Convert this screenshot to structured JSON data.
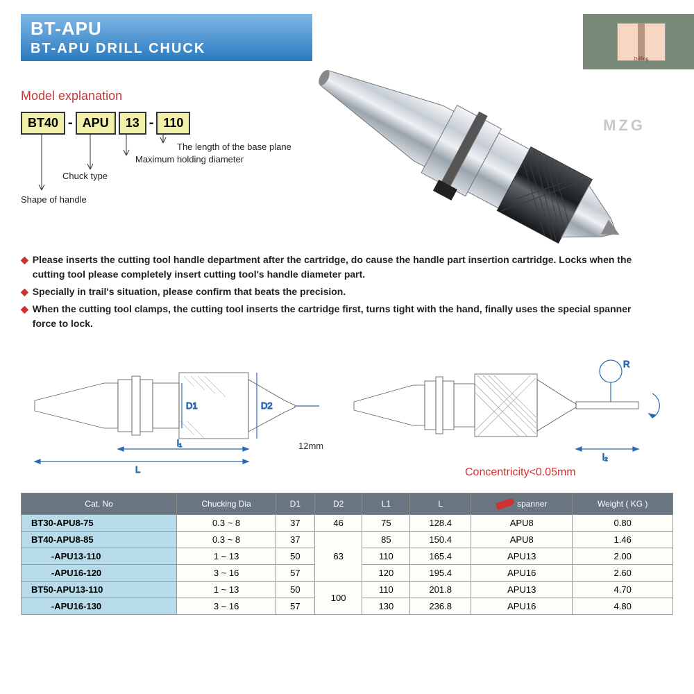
{
  "header": {
    "line1": "BT-APU",
    "line2": "BT-APU  DRILL CHUCK"
  },
  "corner": {
    "label": "Drilling"
  },
  "watermark": "MZG",
  "model": {
    "title": "Model explanation",
    "parts": [
      "BT40",
      "APU",
      "13",
      "110"
    ],
    "labels": {
      "shape": "Shape of handle",
      "chuck": "Chuck type",
      "diameter": "Maximum holding diameter",
      "length": "The length of the base plane"
    }
  },
  "bullets": [
    "Please inserts the cutting tool handle department after the cartridge, do cause the handle part insertion cartridge. Locks when the cutting tool please completely insert cutting tool's handle diameter part.",
    "Specially in trail's situation, please confirm that beats the precision.",
    "When the cutting tool clamps, the cutting tool inserts the cartridge first, turns tight with the hand, finally uses the special spanner force to lock."
  ],
  "diagram": {
    "d1": "D1",
    "d2": "D2",
    "l1": "l₁",
    "L": "L",
    "l2": "l₂",
    "r": "R",
    "twelve": "12mm",
    "concentricity": "Concentricity<0.05mm"
  },
  "table": {
    "headers": [
      "Cat. No",
      "Chucking Dia",
      "D1",
      "D2",
      "L1",
      "L",
      "spanner",
      "Weight ( KG )"
    ],
    "rows": [
      {
        "cat": "BT30-APU8-75",
        "chuck": "0.3 ~ 8",
        "d1": "37",
        "d2": "46",
        "l1": "75",
        "l": "128.4",
        "sp": "APU8",
        "w": "0.80",
        "d2span": 1
      },
      {
        "cat": "BT40-APU8-85",
        "chuck": "0.3 ~ 8",
        "d1": "37",
        "d2": "63",
        "l1": "85",
        "l": "150.4",
        "sp": "APU8",
        "w": "1.46",
        "d2span": 3
      },
      {
        "cat": "        -APU13-110",
        "chuck": "1 ~ 13",
        "d1": "50",
        "d2": "",
        "l1": "110",
        "l": "165.4",
        "sp": "APU13",
        "w": "2.00",
        "d2span": 0
      },
      {
        "cat": "        -APU16-120",
        "chuck": "3 ~ 16",
        "d1": "57",
        "d2": "",
        "l1": "120",
        "l": "195.4",
        "sp": "APU16",
        "w": "2.60",
        "d2span": 0
      },
      {
        "cat": "BT50-APU13-110",
        "chuck": "1 ~ 13",
        "d1": "50",
        "d2": "100",
        "l1": "110",
        "l": "201.8",
        "sp": "APU13",
        "w": "4.70",
        "d2span": 2
      },
      {
        "cat": "        -APU16-130",
        "chuck": "3 ~ 16",
        "d1": "57",
        "d2": "",
        "l1": "130",
        "l": "236.8",
        "sp": "APU16",
        "w": "4.80",
        "d2span": 0
      }
    ]
  },
  "colors": {
    "header_grad_top": "#7fb8e8",
    "header_grad_bot": "#2a7abf",
    "accent_red": "#c23b3b",
    "code_bg": "#f2f0a8",
    "th_bg": "#6a7582",
    "catno_bg": "#b7dbe8"
  }
}
